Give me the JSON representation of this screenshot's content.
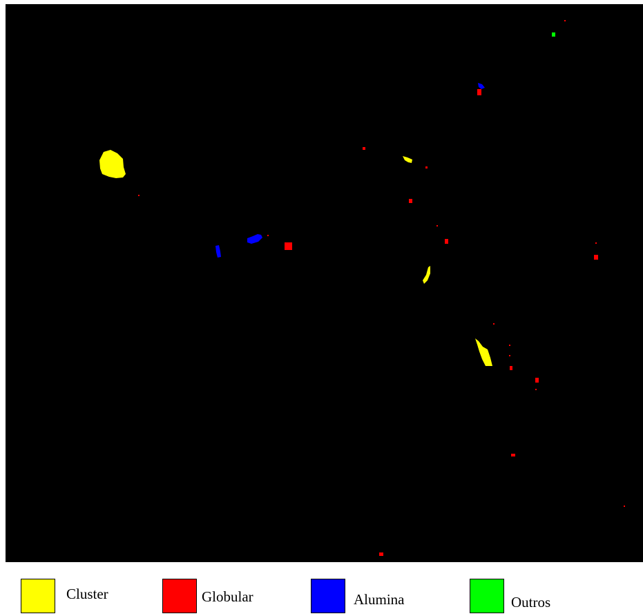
{
  "figure": {
    "background": "#000000",
    "classes": [
      {
        "key": "cluster",
        "label": "Cluster",
        "color": "#ffff00"
      },
      {
        "key": "globular",
        "label": "Globular",
        "color": "#ff0000"
      },
      {
        "key": "alumina",
        "label": "Alumina",
        "color": "#0000ff"
      },
      {
        "key": "outros",
        "label": "Outros",
        "color": "#00ff00"
      }
    ]
  }
}
